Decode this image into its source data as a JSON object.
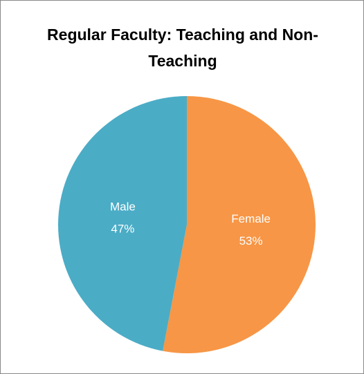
{
  "chart_data": {
    "type": "pie",
    "title": "Regular Faculty: Teaching and Non-Teaching",
    "categories": [
      "Female",
      "Male"
    ],
    "values": [
      53,
      47
    ],
    "value_labels": [
      "53%",
      "47%"
    ],
    "colors": [
      "#f79646",
      "#4bacc6"
    ]
  }
}
